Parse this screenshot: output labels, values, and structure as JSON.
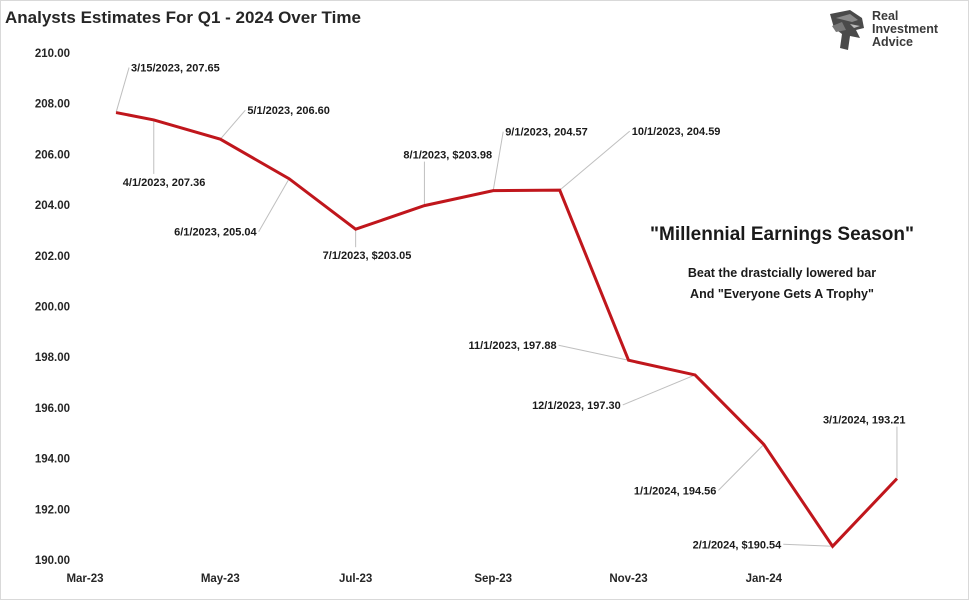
{
  "title": "Analysts Estimates For Q1 - 2024 Over Time",
  "logo": {
    "line1": "Real",
    "line2": "Investment",
    "line3": "Advice"
  },
  "chart_data": {
    "type": "line",
    "title": "Analysts Estimates For Q1 - 2024 Over Time",
    "xlabel": "",
    "ylabel": "",
    "ylim": [
      190,
      210
    ],
    "x_range": [
      "2023-03-01",
      "2024-03-15"
    ],
    "y_ticks": [
      "190.00",
      "192.00",
      "194.00",
      "196.00",
      "198.00",
      "200.00",
      "202.00",
      "204.00",
      "206.00",
      "208.00",
      "210.00"
    ],
    "x_ticks": [
      {
        "date": "2023-03-01",
        "label": "Mar-23"
      },
      {
        "date": "2023-05-01",
        "label": "May-23"
      },
      {
        "date": "2023-07-01",
        "label": "Jul-23"
      },
      {
        "date": "2023-09-01",
        "label": "Sep-23"
      },
      {
        "date": "2023-11-01",
        "label": "Nov-23"
      },
      {
        "date": "2024-01-01",
        "label": "Jan-24"
      }
    ],
    "series": [
      {
        "color": "#c0161c",
        "points": [
          {
            "date": "2023-03-15",
            "value": 207.65,
            "label": "3/15/2023,  207.65"
          },
          {
            "date": "2023-04-01",
            "value": 207.36,
            "label": "4/1/2023,  207.36"
          },
          {
            "date": "2023-05-01",
            "value": 206.6,
            "label": "5/1/2023,  206.60"
          },
          {
            "date": "2023-06-01",
            "value": 205.04,
            "label": "6/1/2023,  205.04"
          },
          {
            "date": "2023-07-01",
            "value": 203.05,
            "label": "7/1/2023, $203.05"
          },
          {
            "date": "2023-08-01",
            "value": 203.98,
            "label": "8/1/2023, $203.98"
          },
          {
            "date": "2023-09-01",
            "value": 204.57,
            "label": "9/1/2023,  204.57"
          },
          {
            "date": "2023-10-01",
            "value": 204.59,
            "label": "10/1/2023,  204.59"
          },
          {
            "date": "2023-11-01",
            "value": 197.88,
            "label": "11/1/2023,  197.88"
          },
          {
            "date": "2023-12-01",
            "value": 197.3,
            "label": "12/1/2023,  197.30"
          },
          {
            "date": "2024-01-01",
            "value": 194.56,
            "label": "1/1/2024,  194.56"
          },
          {
            "date": "2024-02-01",
            "value": 190.54,
            "label": "2/1/2024, $190.54"
          },
          {
            "date": "2024-03-01",
            "value": 193.21,
            "label": "3/1/2024,  193.21"
          }
        ]
      }
    ],
    "annotation": {
      "title": "\"Millennial Earnings Season\"",
      "line1": "Beat the drastcially lowered bar",
      "line2": "And \"Everyone Gets A Trophy\""
    },
    "grid": false,
    "legend": "none"
  }
}
